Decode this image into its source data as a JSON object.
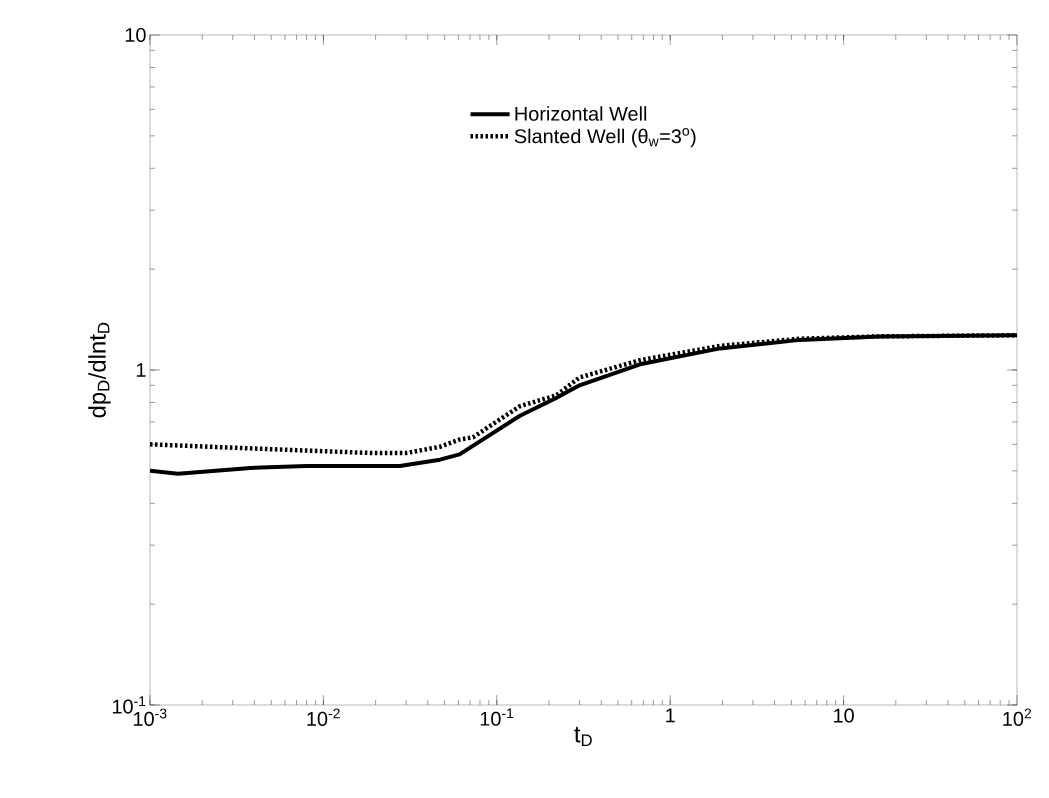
{
  "chart_data": {
    "type": "line",
    "xlabel": "t$_{D}$",
    "ylabel": "dp$_{D}$/dlnt$_{D}$",
    "log": "xy",
    "grid": false,
    "legend": "top",
    "xlim": [
      0.001,
      100
    ],
    "ylim": [
      0.1,
      10
    ],
    "xticks": [
      {
        "value": 0.001,
        "label": "10$^{-3}$"
      },
      {
        "value": 0.01,
        "label": "10$^{-2}$"
      },
      {
        "value": 0.1,
        "label": "10$^{-1}$"
      },
      1,
      10,
      {
        "value": 100,
        "label": "10$^{2}$"
      }
    ],
    "yticks": [
      {
        "value": 0.1,
        "label": "10$^{-1}$"
      },
      1,
      10
    ],
    "series": [
      {
        "name": "Horizontal Well",
        "color": "#000000",
        "line_style": "solid",
        "x": [
          0.001,
          0.00145,
          0.0038,
          0.008,
          0.0276,
          0.047,
          0.061,
          0.136,
          0.22,
          0.3,
          0.67,
          1.94,
          5.6,
          16,
          100
        ],
        "values": [
          0.5,
          0.49,
          0.51,
          0.517,
          0.517,
          0.54,
          0.56,
          0.73,
          0.825,
          0.9,
          1.04,
          1.16,
          1.23,
          1.26,
          1.27
        ]
      },
      {
        "name": "Slanted Well (θ$_{w}$=3$^{o}$)",
        "color": "#000000",
        "line_style": "dotted",
        "x": [
          0.001,
          0.0051,
          0.0193,
          0.03,
          0.047,
          0.061,
          0.073,
          0.136,
          0.22,
          0.3,
          0.67,
          1.94,
          5.6,
          16,
          100
        ],
        "values": [
          0.6,
          0.58,
          0.565,
          0.565,
          0.59,
          0.62,
          0.63,
          0.78,
          0.84,
          0.95,
          1.07,
          1.18,
          1.24,
          1.26,
          1.27
        ]
      }
    ]
  }
}
